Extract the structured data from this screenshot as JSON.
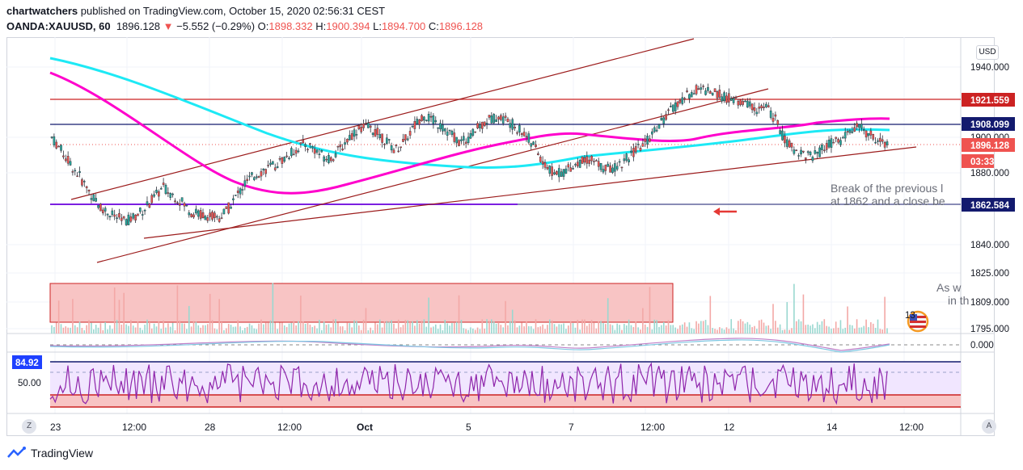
{
  "header": {
    "author": "chartwatchers",
    "published": "published on TradingView.com, October 15, 2020 02:56:31 CEST",
    "symbol": "OANDA:XAUUSD, 60",
    "last": "1896.128",
    "change_arrow": "▼",
    "change": "−5.552 (−0.29%)",
    "o_label": "O:",
    "o_value": "1898.332",
    "h_label": "H:",
    "h_value": "1900.394",
    "l_label": "L:",
    "l_value": "1894.700",
    "c_label": "C:",
    "c_value": "1896.128"
  },
  "currency": "USD",
  "price_axis": {
    "ticks": [
      "1940.000",
      "1880.000",
      "1840.000",
      "1825.000",
      "1809.000",
      "1795.000"
    ],
    "overlap_tick": "1900.000",
    "osc_tick": "0.000",
    "rsi_tick": "50.00",
    "rsi_marker": "84.92"
  },
  "levels": [
    {
      "label": "1921.559",
      "color": "#cc2222"
    },
    {
      "label": "1908.099",
      "color": "#131a6e"
    },
    {
      "label": "1896.128",
      "color": "#ef5350"
    },
    {
      "label": "03:33",
      "color": "#ef5350"
    },
    {
      "label": "1862.584",
      "color": "#131a6e"
    }
  ],
  "x_axis": {
    "labels": [
      "23",
      "12:00",
      "28",
      "12:00",
      "Oct",
      "5",
      "7",
      "12:00",
      "12",
      "14",
      "12:00"
    ]
  },
  "annotations": {
    "break_line1": "Break of the previous l",
    "break_line2": "at 1862 and a close be",
    "note_line1": "As w",
    "note_line2": "in th",
    "badge": "13"
  },
  "corner_left": "Z",
  "corner_right": "A",
  "brand": "TradingView",
  "colors": {
    "up": "#26a69a",
    "down": "#ef5350",
    "ma_fast": "#ff00cc",
    "ma_slow": "#1de9f5",
    "channel": "#9c1c1c",
    "zone": "#f8c4c4"
  },
  "chart_data": {
    "type": "candlestick",
    "symbol": "XAUUSD",
    "interval": "60",
    "ylim": [
      1795,
      1945
    ],
    "close_path": [
      1900,
      1893,
      1885,
      1878,
      1870,
      1862,
      1858,
      1855,
      1853,
      1856,
      1860,
      1866,
      1872,
      1868,
      1864,
      1858,
      1857,
      1856,
      1855,
      1860,
      1868,
      1875,
      1879,
      1882,
      1884,
      1888,
      1892,
      1896,
      1895,
      1890,
      1888,
      1893,
      1900,
      1905,
      1906,
      1903,
      1898,
      1893,
      1898,
      1906,
      1913,
      1910,
      1906,
      1902,
      1897,
      1900,
      1906,
      1910,
      1912,
      1910,
      1906,
      1902,
      1895,
      1885,
      1880,
      1880,
      1884,
      1886,
      1888,
      1884,
      1882,
      1884,
      1888,
      1893,
      1897,
      1905,
      1911,
      1917,
      1922,
      1926,
      1928,
      1926,
      1924,
      1922,
      1920,
      1919,
      1916,
      1917,
      1910,
      1898,
      1893,
      1891,
      1889,
      1893,
      1897,
      1898,
      1904,
      1906,
      1902,
      1899,
      1896
    ]
  }
}
